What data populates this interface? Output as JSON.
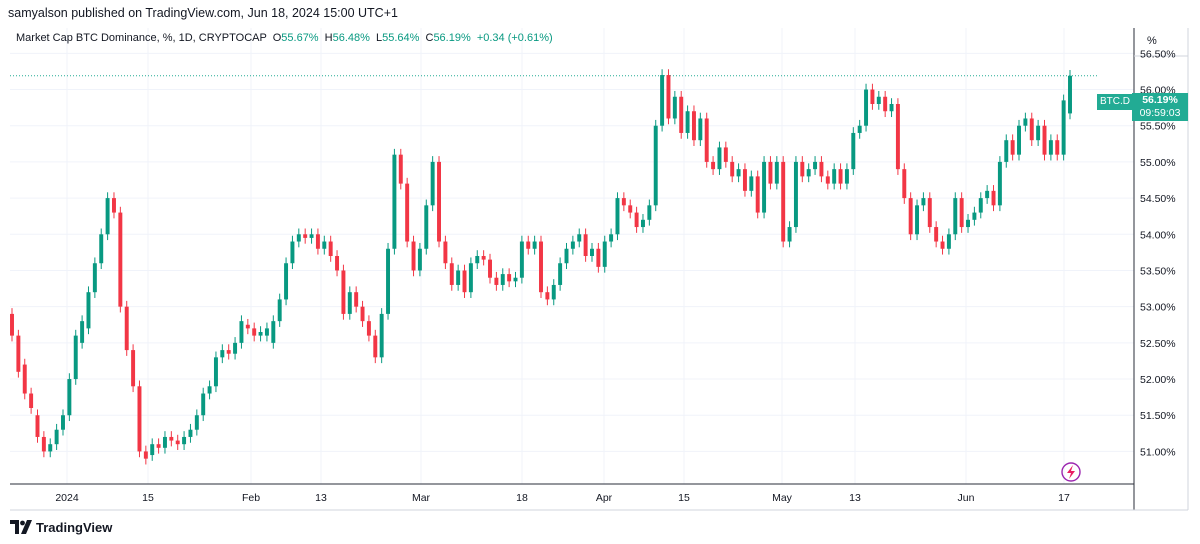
{
  "header": {
    "published": "samyalson published on TradingView.com, Jun 18, 2024 15:00 UTC+1"
  },
  "legend": {
    "title": "Market Cap BTC Dominance, %, 1D, CRYPTOCAP",
    "o_label": "O",
    "o_value": "55.67%",
    "h_label": "H",
    "h_value": "56.48%",
    "l_label": "L",
    "l_value": "55.64%",
    "c_label": "C",
    "c_value": "56.19%",
    "change": "+0.34 (+0.61%)"
  },
  "scale_button": "%",
  "price_label": {
    "symbol": "BTC.D",
    "price": "56.19%",
    "countdown": "09:59:03"
  },
  "footer": {
    "brand": "TradingView"
  },
  "colors": {
    "up": "#089981",
    "down": "#f23645",
    "last": "#22ab94",
    "grid": "#f0f3fa",
    "axis_text": "#131722"
  },
  "icons": {
    "logo": "tradingview-logo-icon",
    "alert": "lightning-icon"
  },
  "chart_data": {
    "type": "candlestick",
    "title": "Market Cap BTC Dominance, %, 1D, CRYPTOCAP",
    "x_ticks": [
      "2024",
      "15",
      "Feb",
      "13",
      "Mar",
      "18",
      "Apr",
      "15",
      "May",
      "13",
      "Jun",
      "17"
    ],
    "y_ticks": [
      "51.00%",
      "51.50%",
      "52.00%",
      "52.50%",
      "53.00%",
      "53.50%",
      "54.00%",
      "54.50%",
      "55.00%",
      "55.50%",
      "56.00%",
      "56.50%"
    ],
    "ylim": [
      50.55,
      56.85
    ],
    "last_close": 56.19,
    "grid": true,
    "candles": [
      [
        52.9,
        52.6
      ],
      [
        52.6,
        52.1
      ],
      [
        52.2,
        51.8
      ],
      [
        51.8,
        51.6
      ],
      [
        51.5,
        51.2
      ],
      [
        51.2,
        51.0
      ],
      [
        51.0,
        51.1
      ],
      [
        51.1,
        51.3
      ],
      [
        51.3,
        51.5
      ],
      [
        51.5,
        52.0
      ],
      [
        52.0,
        52.6
      ],
      [
        52.5,
        52.8
      ],
      [
        52.7,
        53.2
      ],
      [
        53.2,
        53.6
      ],
      [
        53.6,
        54.0
      ],
      [
        54.0,
        54.5
      ],
      [
        54.5,
        54.3
      ],
      [
        54.3,
        53.0
      ],
      [
        53.0,
        52.4
      ],
      [
        52.4,
        51.9
      ],
      [
        51.9,
        51.0
      ],
      [
        51.0,
        50.9
      ],
      [
        50.95,
        51.1
      ],
      [
        51.1,
        51.05
      ],
      [
        51.05,
        51.2
      ],
      [
        51.2,
        51.15
      ],
      [
        51.15,
        51.1
      ],
      [
        51.1,
        51.2
      ],
      [
        51.2,
        51.3
      ],
      [
        51.3,
        51.5
      ],
      [
        51.5,
        51.8
      ],
      [
        51.8,
        51.9
      ],
      [
        51.9,
        52.3
      ],
      [
        52.3,
        52.4
      ],
      [
        52.4,
        52.35
      ],
      [
        52.35,
        52.5
      ],
      [
        52.5,
        52.8
      ],
      [
        52.75,
        52.7
      ],
      [
        52.7,
        52.6
      ],
      [
        52.6,
        52.65
      ],
      [
        52.6,
        52.7
      ],
      [
        52.5,
        52.8
      ],
      [
        52.8,
        53.1
      ],
      [
        53.1,
        53.6
      ],
      [
        53.6,
        53.9
      ],
      [
        53.9,
        54.0
      ],
      [
        54.0,
        53.95
      ],
      [
        53.95,
        54.0
      ],
      [
        54.0,
        53.8
      ],
      [
        53.8,
        53.9
      ],
      [
        53.9,
        53.7
      ],
      [
        53.7,
        53.5
      ],
      [
        53.5,
        52.9
      ],
      [
        52.9,
        53.2
      ],
      [
        53.2,
        53.0
      ],
      [
        53.0,
        52.8
      ],
      [
        52.8,
        52.6
      ],
      [
        52.6,
        52.3
      ],
      [
        52.3,
        52.9
      ],
      [
        52.9,
        53.8
      ],
      [
        53.8,
        55.1
      ],
      [
        55.1,
        54.7
      ],
      [
        54.7,
        53.9
      ],
      [
        53.9,
        53.5
      ],
      [
        53.5,
        53.8
      ],
      [
        53.8,
        54.4
      ],
      [
        54.4,
        55.0
      ],
      [
        55.0,
        53.9
      ],
      [
        53.9,
        53.6
      ],
      [
        53.6,
        53.3
      ],
      [
        53.3,
        53.5
      ],
      [
        53.5,
        53.2
      ],
      [
        53.2,
        53.6
      ],
      [
        53.6,
        53.7
      ],
      [
        53.7,
        53.65
      ],
      [
        53.65,
        53.4
      ],
      [
        53.4,
        53.3
      ],
      [
        53.3,
        53.45
      ],
      [
        53.45,
        53.35
      ],
      [
        53.35,
        53.4
      ],
      [
        53.4,
        53.9
      ],
      [
        53.9,
        53.8
      ],
      [
        53.8,
        53.9
      ],
      [
        53.9,
        53.2
      ],
      [
        53.2,
        53.1
      ],
      [
        53.1,
        53.3
      ],
      [
        53.3,
        53.6
      ],
      [
        53.6,
        53.8
      ],
      [
        53.8,
        53.9
      ],
      [
        53.9,
        54.0
      ],
      [
        54.0,
        53.7
      ],
      [
        53.7,
        53.8
      ],
      [
        53.8,
        53.55
      ],
      [
        53.55,
        53.9
      ],
      [
        53.9,
        54.0
      ],
      [
        54.0,
        54.5
      ],
      [
        54.5,
        54.4
      ],
      [
        54.4,
        54.3
      ],
      [
        54.3,
        54.1
      ],
      [
        54.1,
        54.2
      ],
      [
        54.2,
        54.4
      ],
      [
        54.4,
        55.5
      ],
      [
        55.5,
        56.2
      ],
      [
        56.2,
        55.6
      ],
      [
        55.6,
        55.9
      ],
      [
        55.9,
        55.4
      ],
      [
        55.4,
        55.7
      ],
      [
        55.7,
        55.3
      ],
      [
        55.3,
        55.6
      ],
      [
        55.6,
        55.0
      ],
      [
        55.0,
        54.9
      ],
      [
        54.9,
        55.2
      ],
      [
        55.2,
        55.0
      ],
      [
        55.0,
        54.8
      ],
      [
        54.8,
        54.9
      ],
      [
        54.9,
        54.6
      ],
      [
        54.6,
        54.8
      ],
      [
        54.8,
        54.3
      ],
      [
        54.3,
        55.0
      ],
      [
        55.0,
        54.7
      ],
      [
        54.7,
        55.0
      ],
      [
        55.0,
        53.9
      ],
      [
        53.9,
        54.1
      ],
      [
        54.1,
        55.0
      ],
      [
        55.0,
        54.8
      ],
      [
        54.8,
        54.9
      ],
      [
        54.9,
        55.0
      ],
      [
        55.0,
        54.8
      ],
      [
        54.8,
        54.7
      ],
      [
        54.7,
        54.9
      ],
      [
        54.9,
        54.7
      ],
      [
        54.7,
        54.9
      ],
      [
        54.9,
        55.4
      ],
      [
        55.4,
        55.5
      ],
      [
        55.5,
        56.0
      ],
      [
        56.0,
        55.8
      ],
      [
        55.8,
        55.9
      ],
      [
        55.9,
        55.7
      ],
      [
        55.7,
        55.8
      ],
      [
        55.8,
        54.9
      ],
      [
        54.9,
        54.5
      ],
      [
        54.5,
        54.0
      ],
      [
        54.0,
        54.4
      ],
      [
        54.4,
        54.5
      ],
      [
        54.5,
        54.1
      ],
      [
        54.1,
        53.9
      ],
      [
        53.9,
        53.8
      ],
      [
        53.8,
        54.0
      ],
      [
        54.0,
        54.5
      ],
      [
        54.5,
        54.1
      ],
      [
        54.1,
        54.2
      ],
      [
        54.2,
        54.3
      ],
      [
        54.3,
        54.5
      ],
      [
        54.5,
        54.6
      ],
      [
        54.6,
        54.4
      ],
      [
        54.4,
        55.0
      ],
      [
        55.0,
        55.3
      ],
      [
        55.3,
        55.1
      ],
      [
        55.1,
        55.5
      ],
      [
        55.5,
        55.6
      ],
      [
        55.6,
        55.3
      ],
      [
        55.3,
        55.5
      ],
      [
        55.5,
        55.1
      ],
      [
        55.1,
        55.3
      ],
      [
        55.3,
        55.1
      ],
      [
        55.1,
        55.85
      ],
      [
        55.67,
        56.19
      ]
    ]
  }
}
